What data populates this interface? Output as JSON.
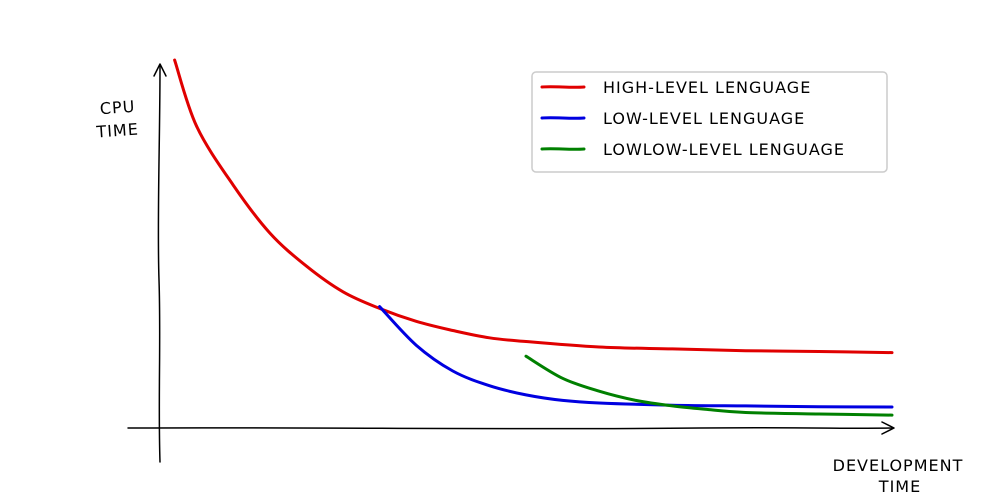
{
  "chart_data": {
    "type": "line",
    "title": "",
    "ylabel_lines": [
      "CPU",
      "TIME"
    ],
    "xlabel_lines": [
      "DEVELOPMENT",
      "TIME"
    ],
    "xlim": [
      0,
      10
    ],
    "ylim": [
      0,
      10
    ],
    "grid": false,
    "legend_position": "top-right",
    "series": [
      {
        "name": "HIGH-LEVEL LENGUAGE",
        "color": "#e00000",
        "x": [
          0.2,
          0.5,
          1.0,
          1.5,
          2.0,
          2.5,
          3.0,
          3.5,
          4.0,
          4.5,
          5.0,
          6.0,
          7.0,
          8.0,
          9.0,
          10.0
        ],
        "y": [
          10.0,
          8.2,
          6.6,
          5.3,
          4.4,
          3.7,
          3.25,
          2.9,
          2.65,
          2.45,
          2.35,
          2.2,
          2.15,
          2.1,
          2.08,
          2.05
        ]
      },
      {
        "name": "LOW-LEVEL LENGUAGE",
        "color": "#0000e0",
        "x": [
          3.0,
          3.5,
          4.0,
          4.5,
          5.0,
          5.5,
          6.0,
          7.0,
          8.0,
          9.0,
          10.0
        ],
        "y": [
          3.3,
          2.25,
          1.55,
          1.15,
          0.9,
          0.75,
          0.68,
          0.62,
          0.6,
          0.58,
          0.57
        ]
      },
      {
        "name": "LOWLOW-LEVEL LENGUAGE",
        "color": "#008000",
        "x": [
          5.0,
          5.5,
          6.0,
          6.5,
          7.0,
          7.5,
          8.0,
          9.0,
          10.0
        ],
        "y": [
          1.95,
          1.35,
          1.0,
          0.75,
          0.6,
          0.5,
          0.42,
          0.38,
          0.35
        ]
      }
    ]
  }
}
